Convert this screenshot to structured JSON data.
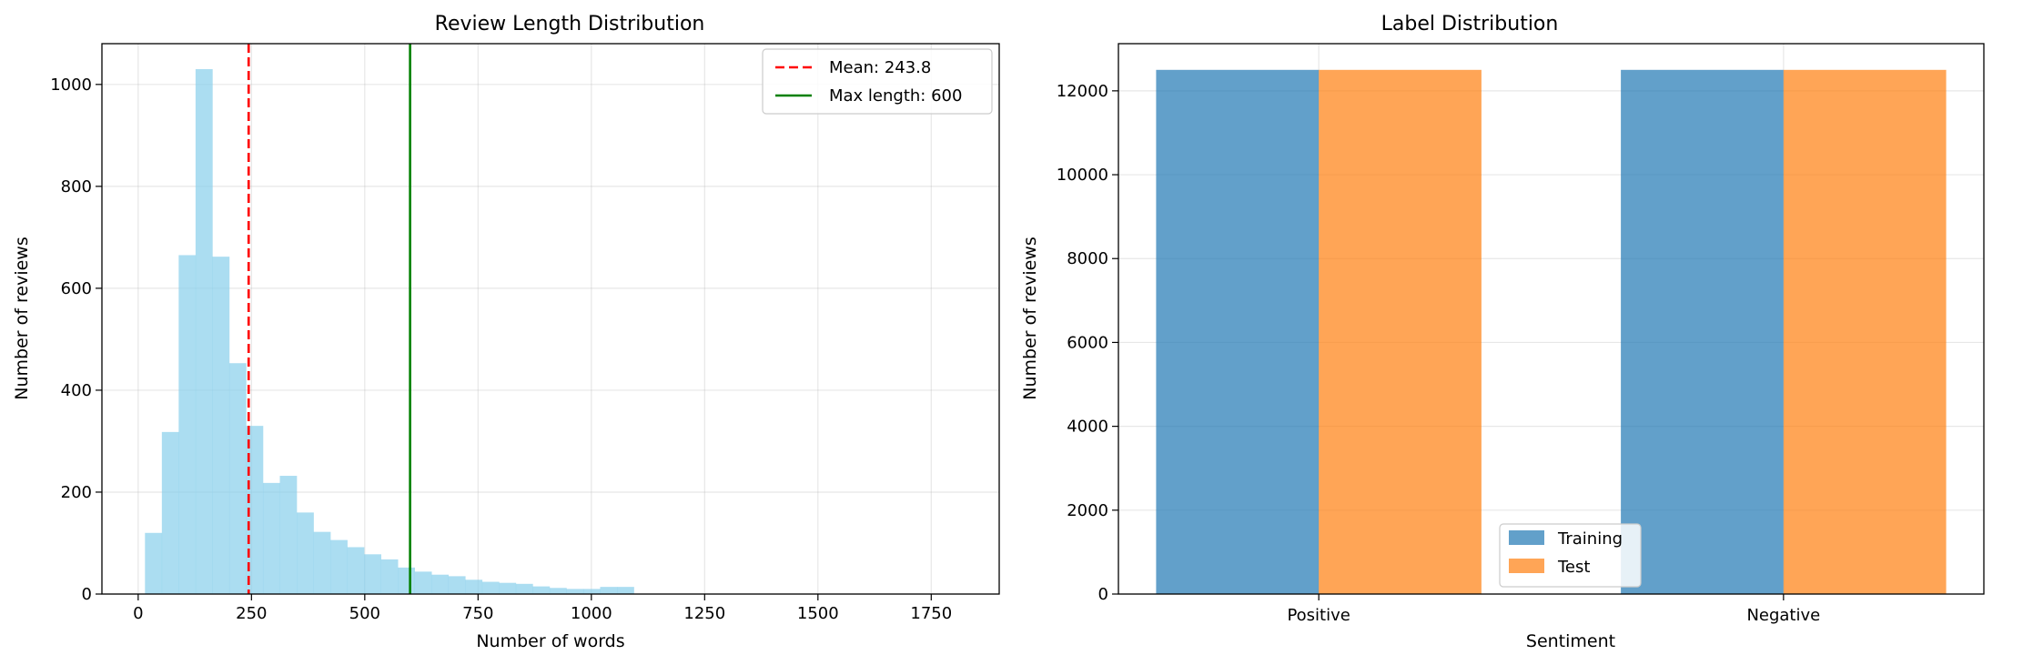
{
  "chart_data": [
    {
      "type": "histogram",
      "title": "Review Length Distribution",
      "xlabel": "Number of words",
      "ylabel": "Number of reviews",
      "xlim": [
        -80,
        1900
      ],
      "ylim": [
        0,
        1080
      ],
      "xticks": [
        0,
        250,
        500,
        750,
        1000,
        1250,
        1500,
        1750
      ],
      "yticks": [
        0,
        200,
        400,
        600,
        800,
        1000
      ],
      "grid": true,
      "bin_start": 15,
      "bin_width": 37.2,
      "counts": [
        120,
        318,
        665,
        1030,
        662,
        453,
        330,
        218,
        232,
        160,
        122,
        106,
        92,
        78,
        68,
        52,
        44,
        38,
        35,
        28,
        24,
        22,
        20,
        15,
        12,
        10,
        10,
        14,
        14
      ],
      "bar_color": "#87ceeb",
      "reference_lines": [
        {
          "label": "Mean: 243.8",
          "x": 243.8,
          "color": "#ff0000",
          "style": "dashed"
        },
        {
          "label": "Max length: 600",
          "x": 600,
          "color": "#008000",
          "style": "solid"
        }
      ],
      "legend_position": "top-right"
    },
    {
      "type": "bar",
      "title": "Label Distribution",
      "xlabel": "Sentiment",
      "ylabel": "Number of reviews",
      "categories": [
        "Positive",
        "Negative"
      ],
      "ylim": [
        0,
        13125
      ],
      "yticks": [
        0,
        2000,
        4000,
        6000,
        8000,
        10000,
        12000
      ],
      "grid": true,
      "series": [
        {
          "name": "Training",
          "values": [
            12500,
            12500
          ],
          "color": "#1f77b4"
        },
        {
          "name": "Test",
          "values": [
            12500,
            12500
          ],
          "color": "#ff7f0e"
        }
      ],
      "legend_position": "lower-center"
    }
  ]
}
